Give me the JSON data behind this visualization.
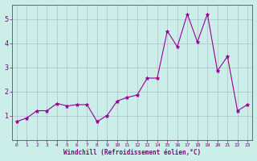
{
  "x": [
    0,
    1,
    2,
    3,
    4,
    5,
    6,
    7,
    8,
    9,
    10,
    11,
    12,
    13,
    14,
    15,
    16,
    17,
    18,
    19,
    20,
    21,
    22,
    23
  ],
  "y": [
    0.75,
    0.9,
    1.2,
    1.2,
    1.5,
    1.4,
    1.45,
    1.45,
    0.75,
    1.0,
    1.6,
    1.75,
    1.85,
    2.55,
    2.55,
    4.5,
    3.85,
    5.2,
    4.05,
    5.2,
    2.85,
    3.45,
    1.2,
    1.45
  ],
  "title": "",
  "xlabel": "Windchill (Refroidissement éolien,°C)",
  "ylabel": "",
  "line_color": "#990099",
  "marker": "*",
  "bg_color": "#cceee8",
  "grid_color": "#aabbcc",
  "plot_bg": "#cceee8",
  "xlim": [
    -0.5,
    23.5
  ],
  "ylim": [
    0,
    5.6
  ],
  "yticks": [
    1,
    2,
    3,
    4,
    5
  ],
  "xticks": [
    0,
    1,
    2,
    3,
    4,
    5,
    6,
    7,
    8,
    9,
    10,
    11,
    12,
    13,
    14,
    15,
    16,
    17,
    18,
    19,
    20,
    21,
    22,
    23
  ],
  "tick_color": "#770077",
  "xlabel_color": "#880088"
}
